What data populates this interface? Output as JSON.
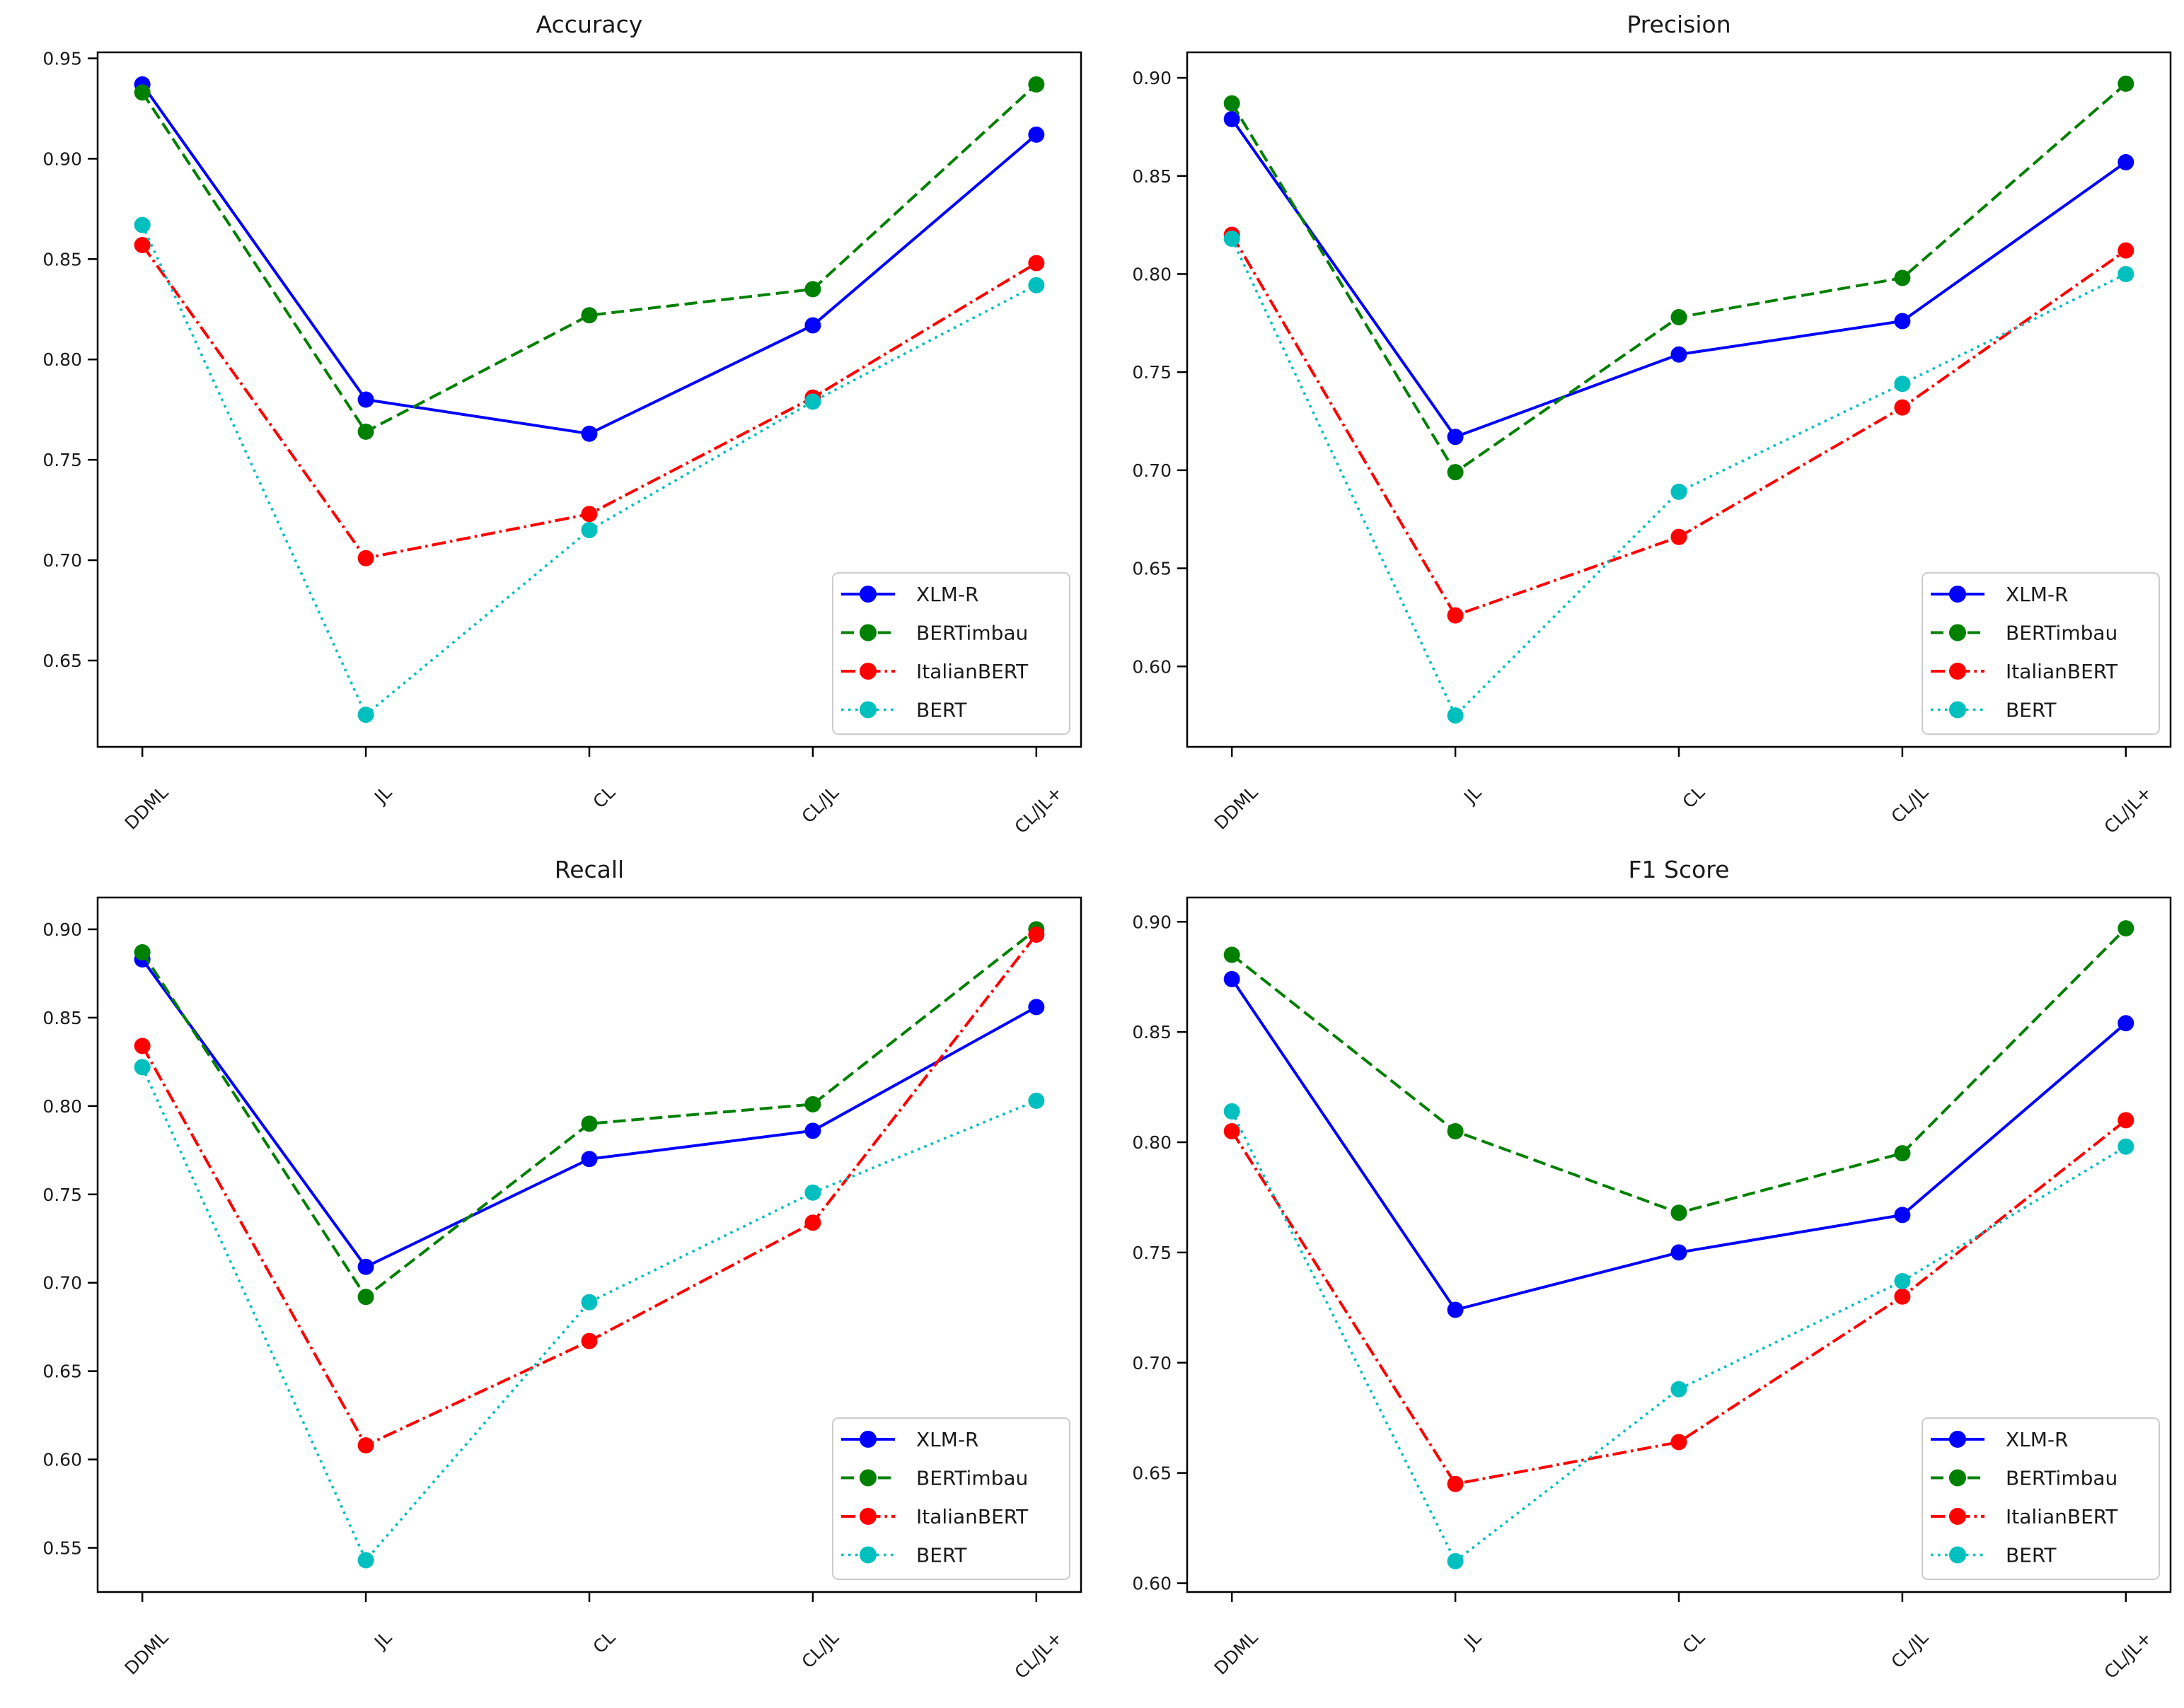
{
  "figure": {
    "background": "#ffffff",
    "text_color": "#1a1a1a",
    "grid": false,
    "legend_position": "lower right",
    "x_axis_categories": [
      "DDML",
      "JL",
      "CL",
      "CL/JL",
      "CL/JL+"
    ]
  },
  "chart_data": [
    {
      "type": "line",
      "title": "Accuracy",
      "xlabel": "",
      "ylabel": "",
      "categories": [
        "DDML",
        "JL",
        "CL",
        "CL/JL",
        "CL/JL+"
      ],
      "ylim": [
        0.607,
        0.953
      ],
      "yticks": [
        0.65,
        0.7,
        0.75,
        0.8,
        0.85,
        0.9,
        0.95
      ],
      "legend_position": "lower right",
      "grid": false,
      "series": [
        {
          "name": "XLM-R",
          "color": "#0000ff",
          "linestyle": "solid",
          "marker": "circle",
          "values": [
            0.937,
            0.78,
            0.763,
            0.817,
            0.912
          ]
        },
        {
          "name": "BERTimbau",
          "color": "#008000",
          "linestyle": "dashed",
          "marker": "circle",
          "values": [
            0.933,
            0.764,
            0.822,
            0.835,
            0.937
          ]
        },
        {
          "name": "ItalianBERT",
          "color": "#ff0000",
          "linestyle": "dashdot",
          "marker": "circle",
          "values": [
            0.857,
            0.701,
            0.723,
            0.781,
            0.848
          ]
        },
        {
          "name": "BERT",
          "color": "#00bfbf",
          "linestyle": "dotted",
          "marker": "circle",
          "values": [
            0.867,
            0.623,
            0.715,
            0.779,
            0.837
          ]
        }
      ]
    },
    {
      "type": "line",
      "title": "Precision",
      "xlabel": "",
      "ylabel": "",
      "categories": [
        "DDML",
        "JL",
        "CL",
        "CL/JL",
        "CL/JL+"
      ],
      "ylim": [
        0.559,
        0.913
      ],
      "yticks": [
        0.6,
        0.65,
        0.7,
        0.75,
        0.8,
        0.85,
        0.9
      ],
      "legend_position": "lower right",
      "grid": false,
      "series": [
        {
          "name": "XLM-R",
          "color": "#0000ff",
          "linestyle": "solid",
          "marker": "circle",
          "values": [
            0.879,
            0.717,
            0.759,
            0.776,
            0.857
          ]
        },
        {
          "name": "BERTimbau",
          "color": "#008000",
          "linestyle": "dashed",
          "marker": "circle",
          "values": [
            0.887,
            0.699,
            0.778,
            0.798,
            0.897
          ]
        },
        {
          "name": "ItalianBERT",
          "color": "#ff0000",
          "linestyle": "dashdot",
          "marker": "circle",
          "values": [
            0.82,
            0.626,
            0.666,
            0.732,
            0.812
          ]
        },
        {
          "name": "BERT",
          "color": "#00bfbf",
          "linestyle": "dotted",
          "marker": "circle",
          "values": [
            0.818,
            0.575,
            0.689,
            0.744,
            0.8
          ]
        }
      ]
    },
    {
      "type": "line",
      "title": "Recall",
      "xlabel": "",
      "ylabel": "",
      "categories": [
        "DDML",
        "JL",
        "CL",
        "CL/JL",
        "CL/JL+"
      ],
      "ylim": [
        0.525,
        0.918
      ],
      "yticks": [
        0.55,
        0.6,
        0.65,
        0.7,
        0.75,
        0.8,
        0.85,
        0.9
      ],
      "legend_position": "lower right",
      "grid": false,
      "series": [
        {
          "name": "XLM-R",
          "color": "#0000ff",
          "linestyle": "solid",
          "marker": "circle",
          "values": [
            0.883,
            0.709,
            0.77,
            0.786,
            0.856
          ]
        },
        {
          "name": "BERTimbau",
          "color": "#008000",
          "linestyle": "dashed",
          "marker": "circle",
          "values": [
            0.887,
            0.692,
            0.79,
            0.801,
            0.9
          ]
        },
        {
          "name": "ItalianBERT",
          "color": "#ff0000",
          "linestyle": "dashdot",
          "marker": "circle",
          "values": [
            0.834,
            0.608,
            0.667,
            0.734,
            0.897
          ]
        },
        {
          "name": "BERT",
          "color": "#00bfbf",
          "linestyle": "dotted",
          "marker": "circle",
          "values": [
            0.822,
            0.543,
            0.689,
            0.751,
            0.803
          ]
        }
      ]
    },
    {
      "type": "line",
      "title": "F1 Score",
      "xlabel": "",
      "ylabel": "",
      "categories": [
        "DDML",
        "JL",
        "CL",
        "CL/JL",
        "CL/JL+"
      ],
      "ylim": [
        0.596,
        0.911
      ],
      "yticks": [
        0.6,
        0.65,
        0.7,
        0.75,
        0.8,
        0.85,
        0.9
      ],
      "legend_position": "lower right",
      "grid": false,
      "series": [
        {
          "name": "XLM-R",
          "color": "#0000ff",
          "linestyle": "solid",
          "marker": "circle",
          "values": [
            0.874,
            0.724,
            0.75,
            0.767,
            0.854
          ]
        },
        {
          "name": "BERTimbau",
          "color": "#008000",
          "linestyle": "dashed",
          "marker": "circle",
          "values": [
            0.885,
            0.805,
            0.768,
            0.795,
            0.897
          ]
        },
        {
          "name": "ItalianBERT",
          "color": "#ff0000",
          "linestyle": "dashdot",
          "marker": "circle",
          "values": [
            0.805,
            0.645,
            0.664,
            0.73,
            0.81
          ]
        },
        {
          "name": "BERT",
          "color": "#00bfbf",
          "linestyle": "dotted",
          "marker": "circle",
          "values": [
            0.814,
            0.61,
            0.688,
            0.737,
            0.798
          ]
        }
      ]
    }
  ]
}
